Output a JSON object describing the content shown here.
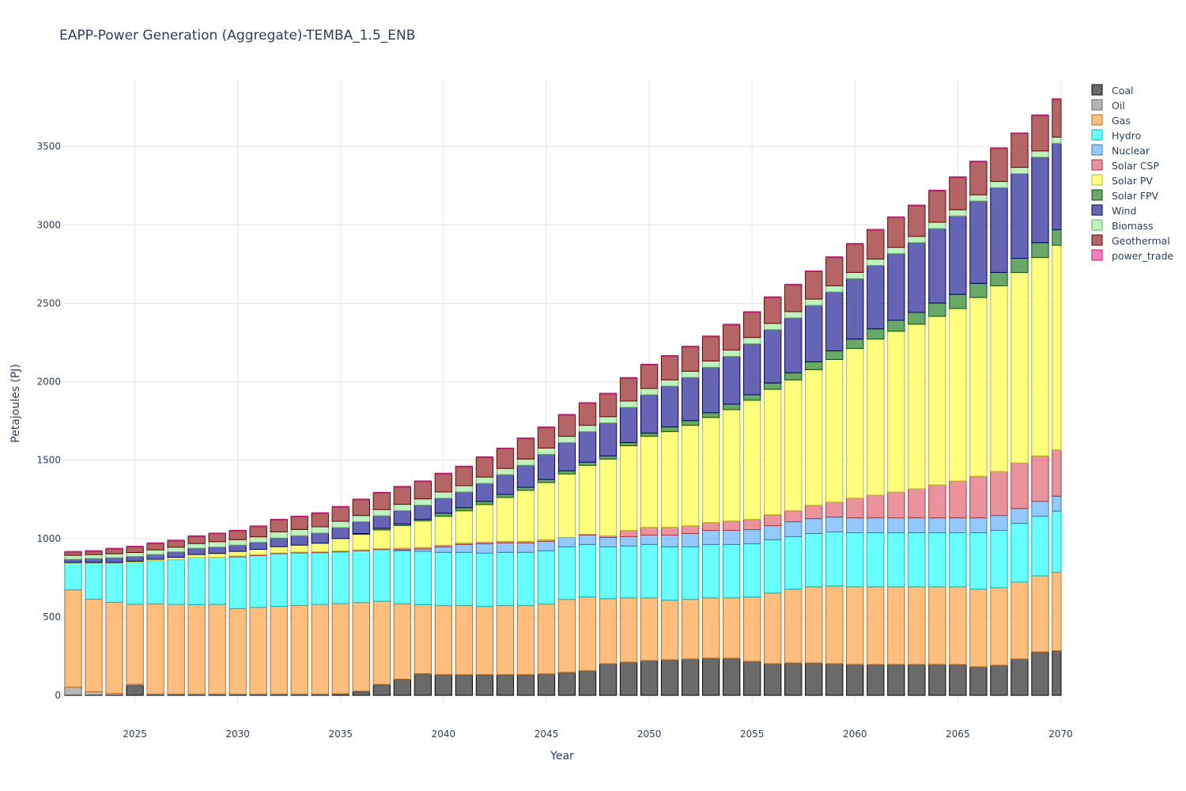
{
  "chart_data": {
    "type": "bar",
    "stacked": true,
    "title": "EAPP-Power Generation (Aggregate)-TEMBA_1.5_ENB",
    "xlabel": "Year",
    "ylabel": "Petajoules (PJ)",
    "xlim": [
      2022,
      2070
    ],
    "ylim": [
      -50,
      3930
    ],
    "x_ticks": [
      2025,
      2030,
      2035,
      2040,
      2045,
      2050,
      2055,
      2060,
      2065,
      2070
    ],
    "y_ticks": [
      0,
      500,
      1000,
      1500,
      2000,
      2500,
      3000,
      3500
    ],
    "grid": true,
    "legend_position": "right",
    "x": [
      2022,
      2023,
      2024,
      2025,
      2026,
      2027,
      2028,
      2029,
      2030,
      2031,
      2032,
      2033,
      2034,
      2035,
      2036,
      2037,
      2038,
      2039,
      2040,
      2041,
      2042,
      2043,
      2044,
      2045,
      2046,
      2047,
      2048,
      2049,
      2050,
      2051,
      2052,
      2053,
      2054,
      2055,
      2056,
      2057,
      2058,
      2059,
      2060,
      2061,
      2062,
      2063,
      2064,
      2065,
      2066,
      2067,
      2068,
      2069,
      2070
    ],
    "series": [
      {
        "name": "Coal",
        "color": "#505050",
        "values": [
          3,
          3,
          3,
          63,
          3,
          3,
          3,
          3,
          3,
          3,
          3,
          3,
          3,
          5,
          22,
          65,
          100,
          135,
          130,
          130,
          130,
          130,
          130,
          135,
          145,
          155,
          200,
          210,
          220,
          225,
          230,
          235,
          235,
          215,
          200,
          205,
          205,
          200,
          195,
          195,
          195,
          195,
          195,
          195,
          180,
          190,
          230,
          275,
          283
        ]
      },
      {
        "name": "Oil",
        "color": "#a8a8a8",
        "values": [
          50,
          20,
          10,
          8,
          5,
          5,
          5,
          5,
          5,
          5,
          5,
          5,
          5,
          5,
          5,
          5,
          3,
          3,
          2,
          2,
          2,
          2,
          2,
          2,
          2,
          2,
          2,
          2,
          2,
          2,
          2,
          2,
          2,
          2,
          2,
          2,
          2,
          2,
          2,
          2,
          2,
          2,
          2,
          2,
          2,
          2,
          2,
          2,
          2
        ]
      },
      {
        "name": "Gas",
        "color": "#ffb366",
        "values": [
          620,
          590,
          580,
          510,
          575,
          572,
          570,
          572,
          545,
          553,
          560,
          565,
          572,
          575,
          565,
          530,
          480,
          440,
          440,
          440,
          435,
          440,
          440,
          445,
          465,
          470,
          415,
          410,
          400,
          380,
          380,
          385,
          385,
          410,
          450,
          470,
          485,
          495,
          495,
          495,
          495,
          495,
          495,
          495,
          495,
          495,
          490,
          485,
          500
        ]
      },
      {
        "name": "Hydro",
        "color": "#4dffff",
        "values": [
          170,
          230,
          250,
          270,
          275,
          285,
          300,
          300,
          330,
          330,
          335,
          335,
          330,
          330,
          330,
          330,
          340,
          340,
          340,
          340,
          340,
          340,
          340,
          340,
          335,
          335,
          330,
          330,
          340,
          340,
          335,
          340,
          340,
          340,
          340,
          335,
          340,
          345,
          345,
          345,
          345,
          345,
          345,
          345,
          360,
          365,
          375,
          380,
          390
        ]
      },
      {
        "name": "Nuclear",
        "color": "#80bfff",
        "values": [
          0,
          0,
          0,
          0,
          0,
          0,
          0,
          0,
          0,
          0,
          0,
          0,
          0,
          0,
          0,
          0,
          5,
          15,
          35,
          50,
          60,
          60,
          60,
          60,
          60,
          60,
          60,
          60,
          60,
          75,
          85,
          90,
          90,
          90,
          90,
          95,
          95,
          95,
          95,
          95,
          95,
          95,
          95,
          95,
          95,
          95,
          95,
          95,
          95
        ]
      },
      {
        "name": "Solar CSP",
        "color": "#e8808c",
        "values": [
          0,
          0,
          0,
          0,
          0,
          0,
          0,
          0,
          5,
          5,
          5,
          5,
          5,
          5,
          5,
          5,
          10,
          10,
          10,
          10,
          10,
          10,
          10,
          10,
          0,
          5,
          10,
          40,
          50,
          50,
          50,
          50,
          60,
          65,
          70,
          70,
          85,
          95,
          125,
          145,
          165,
          185,
          210,
          235,
          265,
          280,
          290,
          290,
          295
        ]
      },
      {
        "name": "Solar PV",
        "color": "#ffff66",
        "values": [
          5,
          5,
          5,
          5,
          10,
          15,
          20,
          25,
          30,
          35,
          40,
          45,
          55,
          80,
          100,
          120,
          145,
          170,
          185,
          205,
          240,
          280,
          325,
          365,
          405,
          440,
          490,
          540,
          580,
          610,
          640,
          670,
          710,
          760,
          800,
          835,
          865,
          910,
          955,
          995,
          1025,
          1050,
          1075,
          1100,
          1140,
          1185,
          1215,
          1265,
          1305
        ]
      },
      {
        "name": "Solar FPV",
        "color": "#4d9a4d",
        "values": [
          0,
          0,
          0,
          0,
          0,
          0,
          0,
          0,
          0,
          0,
          0,
          0,
          0,
          0,
          5,
          10,
          10,
          10,
          20,
          20,
          20,
          20,
          20,
          20,
          20,
          20,
          20,
          20,
          20,
          30,
          30,
          30,
          35,
          35,
          40,
          45,
          50,
          55,
          60,
          65,
          70,
          75,
          85,
          90,
          90,
          85,
          90,
          95,
          100
        ]
      },
      {
        "name": "Wind",
        "color": "#4a4aa8",
        "values": [
          20,
          25,
          30,
          30,
          30,
          35,
          40,
          40,
          40,
          45,
          55,
          60,
          65,
          70,
          75,
          80,
          85,
          90,
          95,
          100,
          115,
          125,
          140,
          160,
          180,
          195,
          210,
          225,
          245,
          260,
          275,
          290,
          305,
          325,
          340,
          350,
          360,
          375,
          385,
          405,
          425,
          445,
          475,
          500,
          525,
          540,
          540,
          545,
          550
        ]
      },
      {
        "name": "Biomass",
        "color": "#b3f0b3",
        "values": [
          25,
          25,
          25,
          25,
          30,
          30,
          30,
          35,
          35,
          35,
          40,
          40,
          40,
          40,
          40,
          40,
          40,
          40,
          40,
          40,
          40,
          40,
          40,
          40,
          40,
          40,
          40,
          40,
          40,
          40,
          40,
          40,
          40,
          40,
          40,
          40,
          40,
          40,
          40,
          40,
          40,
          40,
          40,
          40,
          40,
          40,
          40,
          40,
          40
        ]
      },
      {
        "name": "Geothermal",
        "color": "#a84a4a",
        "values": [
          20,
          20,
          30,
          35,
          40,
          40,
          45,
          50,
          55,
          65,
          75,
          80,
          85,
          90,
          100,
          105,
          110,
          110,
          115,
          120,
          125,
          125,
          130,
          130,
          135,
          140,
          145,
          145,
          150,
          150,
          155,
          155,
          160,
          160,
          165,
          170,
          175,
          180,
          180,
          185,
          190,
          195,
          200,
          205,
          210,
          210,
          215,
          225,
          240
        ]
      },
      {
        "name": "power_trade",
        "color": "#ff66b3",
        "values": [
          5,
          5,
          5,
          5,
          5,
          5,
          5,
          5,
          5,
          5,
          5,
          5,
          5,
          5,
          5,
          5,
          5,
          5,
          5,
          5,
          5,
          5,
          5,
          5,
          5,
          5,
          5,
          5,
          5,
          5,
          5,
          5,
          5,
          5,
          5,
          5,
          5,
          5,
          5,
          5,
          5,
          5,
          5,
          5,
          5,
          5,
          5,
          5,
          5
        ]
      }
    ]
  }
}
